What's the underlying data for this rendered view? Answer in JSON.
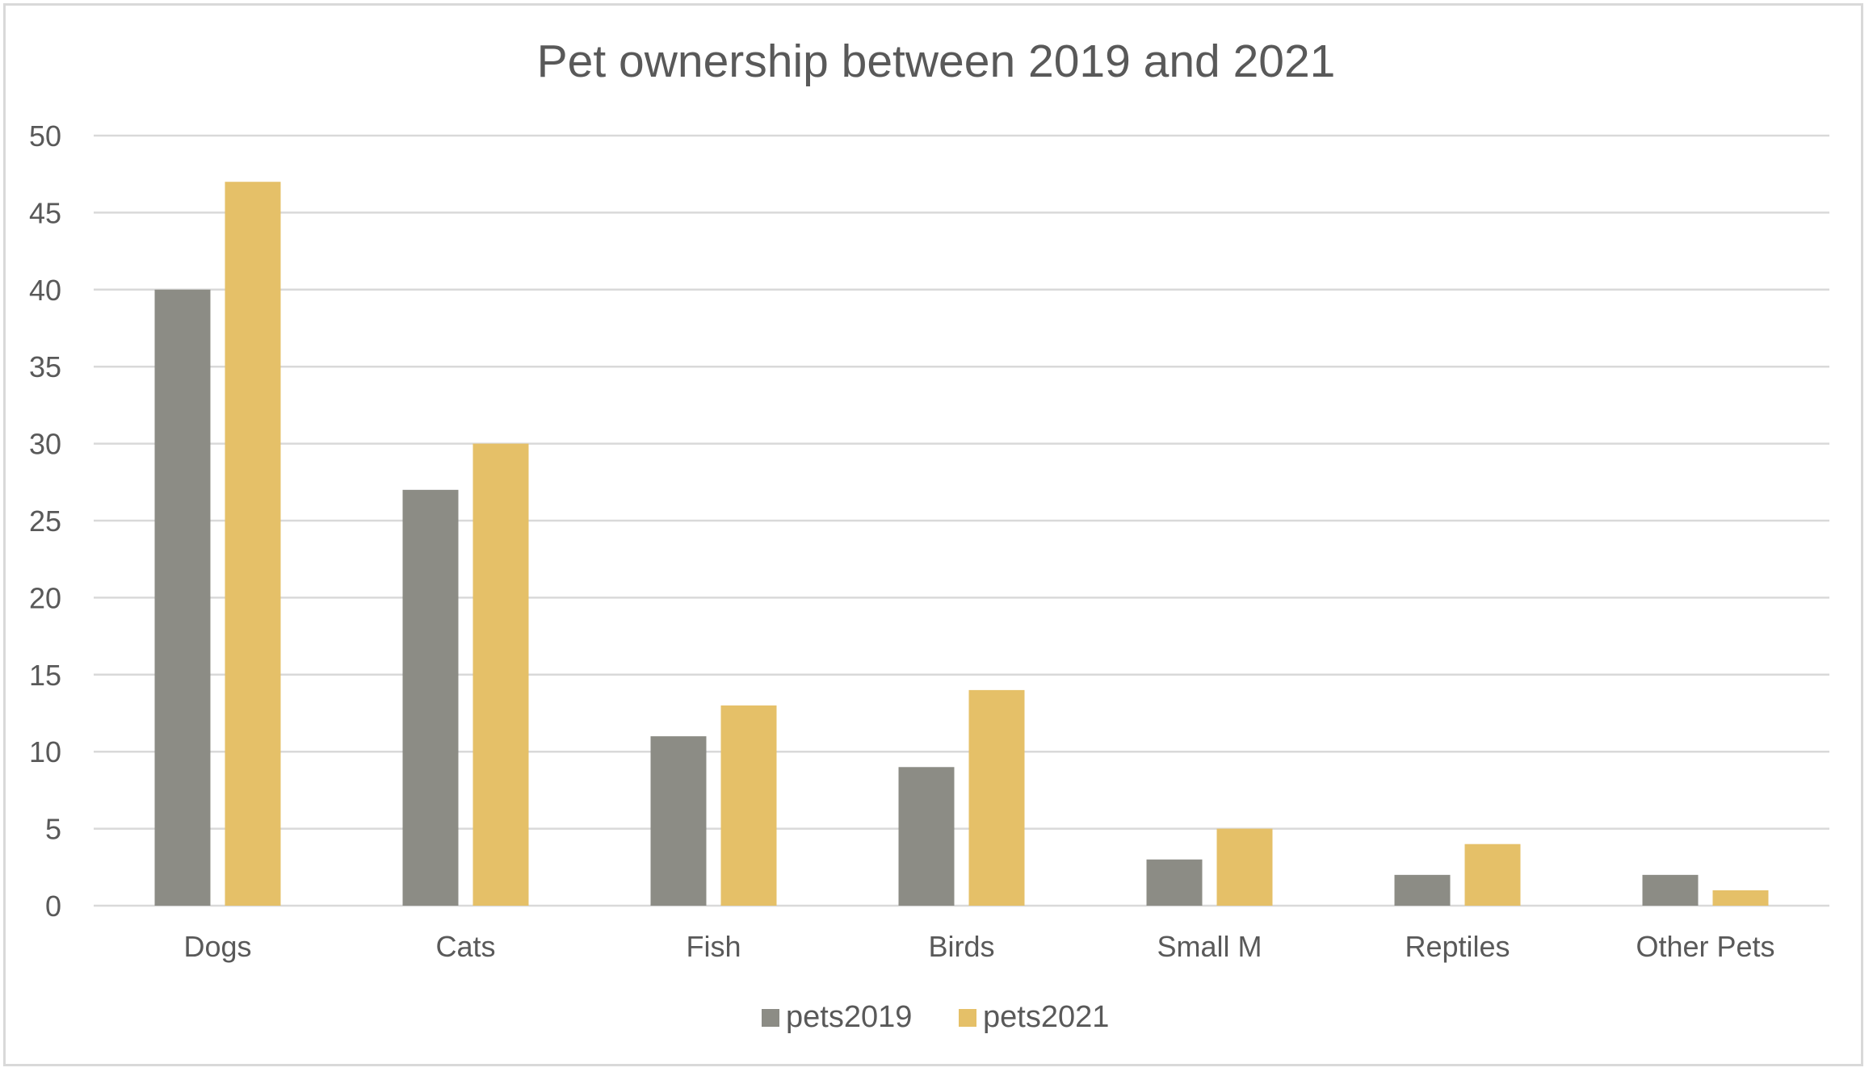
{
  "chart_data": {
    "type": "bar",
    "title": "Pet ownership between 2019 and 2021",
    "xlabel": "",
    "ylabel": "",
    "categories": [
      "Dogs",
      "Cats",
      "Fish",
      "Birds",
      "Small M",
      "Reptiles",
      "Other Pets"
    ],
    "series": [
      {
        "name": "pets2019",
        "color": "#8c8c85",
        "values": [
          40,
          27,
          11,
          9,
          3,
          2,
          2
        ]
      },
      {
        "name": "pets2021",
        "color": "#e5c068",
        "values": [
          47,
          30,
          13,
          14,
          5,
          4,
          1
        ]
      }
    ],
    "ylim": [
      0,
      50
    ],
    "yticks": [
      "0",
      "5",
      "10",
      "15",
      "20",
      "25",
      "30",
      "35",
      "40",
      "45",
      "50"
    ],
    "grid": true,
    "legend_position": "bottom-center",
    "colors": {
      "gridline": "#d9d9d9",
      "axis_line": "#d9d9d9",
      "text": "#595959",
      "border": "#d9d9d9"
    }
  }
}
